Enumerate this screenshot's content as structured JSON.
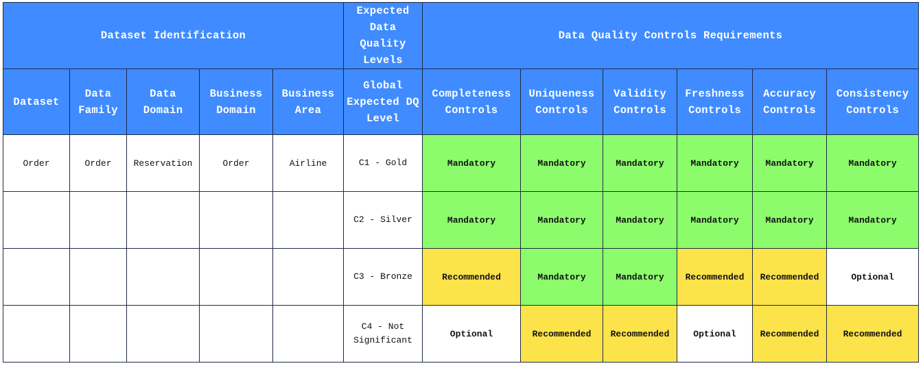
{
  "header": {
    "group_identification": "Dataset Identification",
    "group_expected": "Expected Data Quality Levels",
    "group_controls": "Data Quality Controls Requirements"
  },
  "columns": {
    "dataset": "Dataset",
    "data_family": "Data Family",
    "data_domain": "Data Domain",
    "business_domain": "Business Domain",
    "business_area": "Business Area",
    "global_level": "Global Expected DQ Level",
    "completeness": "Completeness Controls",
    "uniqueness": "Uniqueness Controls",
    "validity": "Validity Controls",
    "freshness": "Freshness Controls",
    "accuracy": "Accuracy Controls",
    "consistency": "Consistency Controls"
  },
  "rows": [
    {
      "dataset": "Order",
      "data_family": "Order",
      "data_domain": "Reservation",
      "business_domain": "Order",
      "business_area": "Airline",
      "level": "C1 - Gold",
      "controls": [
        "Mandatory",
        "Mandatory",
        "Mandatory",
        "Mandatory",
        "Mandatory",
        "Mandatory"
      ]
    },
    {
      "dataset": "",
      "data_family": "",
      "data_domain": "",
      "business_domain": "",
      "business_area": "",
      "level": "C2 - Silver",
      "controls": [
        "Mandatory",
        "Mandatory",
        "Mandatory",
        "Mandatory",
        "Mandatory",
        "Mandatory"
      ]
    },
    {
      "dataset": "",
      "data_family": "",
      "data_domain": "",
      "business_domain": "",
      "business_area": "",
      "level": "C3 - Bronze",
      "controls": [
        "Recommended",
        "Mandatory",
        "Mandatory",
        "Recommended",
        "Recommended",
        "Optional"
      ]
    },
    {
      "dataset": "",
      "data_family": "",
      "data_domain": "",
      "business_domain": "",
      "business_area": "",
      "level": "C4 - Not Significant",
      "controls": [
        "Optional",
        "Recommended",
        "Recommended",
        "Optional",
        "Recommended",
        "Recommended"
      ]
    }
  ],
  "status_colors": {
    "Mandatory": "#8cfc6c",
    "Recommended": "#fce34a",
    "Optional": "#ffffff"
  },
  "header_color": "#3f8bff"
}
